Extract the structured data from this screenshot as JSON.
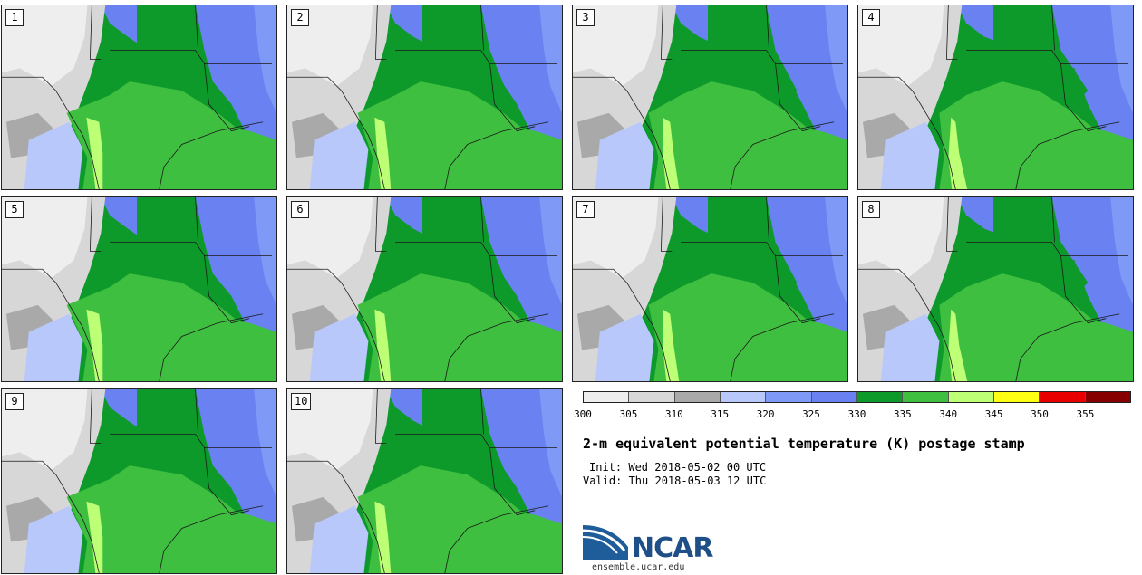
{
  "panels": [
    {
      "label": "1"
    },
    {
      "label": "2"
    },
    {
      "label": "3"
    },
    {
      "label": "4"
    },
    {
      "label": "5"
    },
    {
      "label": "6"
    },
    {
      "label": "7"
    },
    {
      "label": "8"
    },
    {
      "label": "9"
    },
    {
      "label": "10"
    }
  ],
  "colorbar": {
    "colors": [
      "#eeeeee",
      "#d7d7d7",
      "#a9a9a9",
      "#b8c8fb",
      "#7f9af6",
      "#6a82f1",
      "#0d9a2a",
      "#3fbf3f",
      "#bdff75",
      "#ffff14",
      "#e80000",
      "#870000"
    ],
    "ticks": [
      "300",
      "305",
      "310",
      "315",
      "320",
      "325",
      "330",
      "335",
      "340",
      "345",
      "350",
      "355"
    ]
  },
  "title": "2-m equivalent potential temperature (K) postage stamp",
  "init": "Init: Wed 2018-05-02 00 UTC",
  "valid": "Valid: Thu 2018-05-03 12 UTC",
  "logo": {
    "word": "NCAR",
    "url": "ensemble.ucar.edu"
  }
}
